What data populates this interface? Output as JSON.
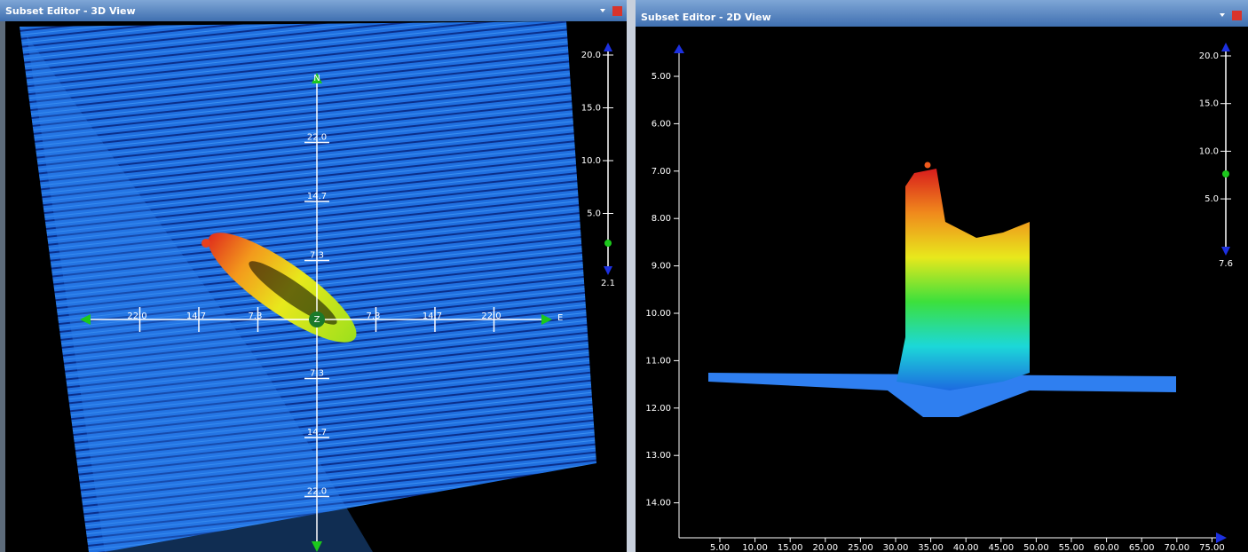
{
  "left_panel": {
    "title": "Subset Editor - 3D View",
    "slider": {
      "ticks": [
        "20.0",
        "15.0",
        "10.0",
        "5.0"
      ],
      "value": "2.1"
    },
    "compass": {
      "north": "N",
      "east": "E",
      "center": "Z",
      "west_ticks": [
        "22.0",
        "14.7",
        "7.3"
      ],
      "east_ticks": [
        "7.3",
        "14.7",
        "22.0"
      ],
      "north_ticks": [
        "22.0",
        "14.7",
        "7.3"
      ],
      "south_ticks": [
        "7.3",
        "14.7",
        "22.0"
      ]
    }
  },
  "right_panel": {
    "title": "Subset Editor - 2D View",
    "slider": {
      "ticks": [
        "20.0",
        "15.0",
        "10.0",
        "5.0"
      ],
      "value": "7.6"
    },
    "y_axis": [
      "5.00",
      "6.00",
      "7.00",
      "8.00",
      "9.00",
      "10.00",
      "11.00",
      "12.00",
      "13.00",
      "14.00"
    ],
    "x_axis": [
      "5.00",
      "10.00",
      "15.00",
      "20.00",
      "25.00",
      "30.00",
      "35.00",
      "40.00",
      "45.00",
      "50.00",
      "55.00",
      "60.00",
      "65.00",
      "70.00",
      "75.00"
    ]
  }
}
